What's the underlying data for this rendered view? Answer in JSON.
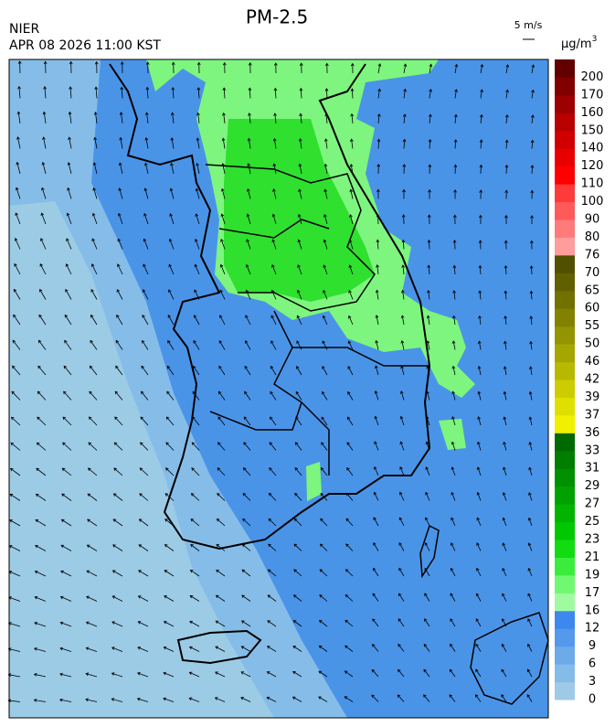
{
  "header": {
    "title": "PM-2.5",
    "agency": "NIER",
    "datetime": "APR 08 2026 11:00 KST",
    "wind_scale": "5 m/s"
  },
  "colorbar": {
    "unit": "µg/m",
    "unit_superscript": "3",
    "labels": [
      0,
      3,
      6,
      9,
      12,
      16,
      17,
      19,
      21,
      23,
      25,
      27,
      29,
      31,
      33,
      36,
      37,
      39,
      42,
      46,
      50,
      55,
      60,
      65,
      70,
      76,
      80,
      90,
      100,
      110,
      120,
      140,
      150,
      160,
      170,
      200
    ],
    "colors": [
      "#9ecae6",
      "#85bbe8",
      "#6caaea",
      "#5499ec",
      "#3d88ee",
      "#a0fba0",
      "#70f870",
      "#3cec3c",
      "#10dc10",
      "#00c800",
      "#00b400",
      "#00a200",
      "#009000",
      "#007e00",
      "#006a00",
      "#f0f000",
      "#e0e000",
      "#cccc00",
      "#b8b800",
      "#a6a600",
      "#949400",
      "#828200",
      "#717100",
      "#606000",
      "#505000",
      "#ff9c9c",
      "#ff7a7a",
      "#ff5a5a",
      "#ff3a3a",
      "#ff0000",
      "#e80000",
      "#d00000",
      "#b80000",
      "#9c0000",
      "#800000",
      "#620000"
    ]
  }
}
